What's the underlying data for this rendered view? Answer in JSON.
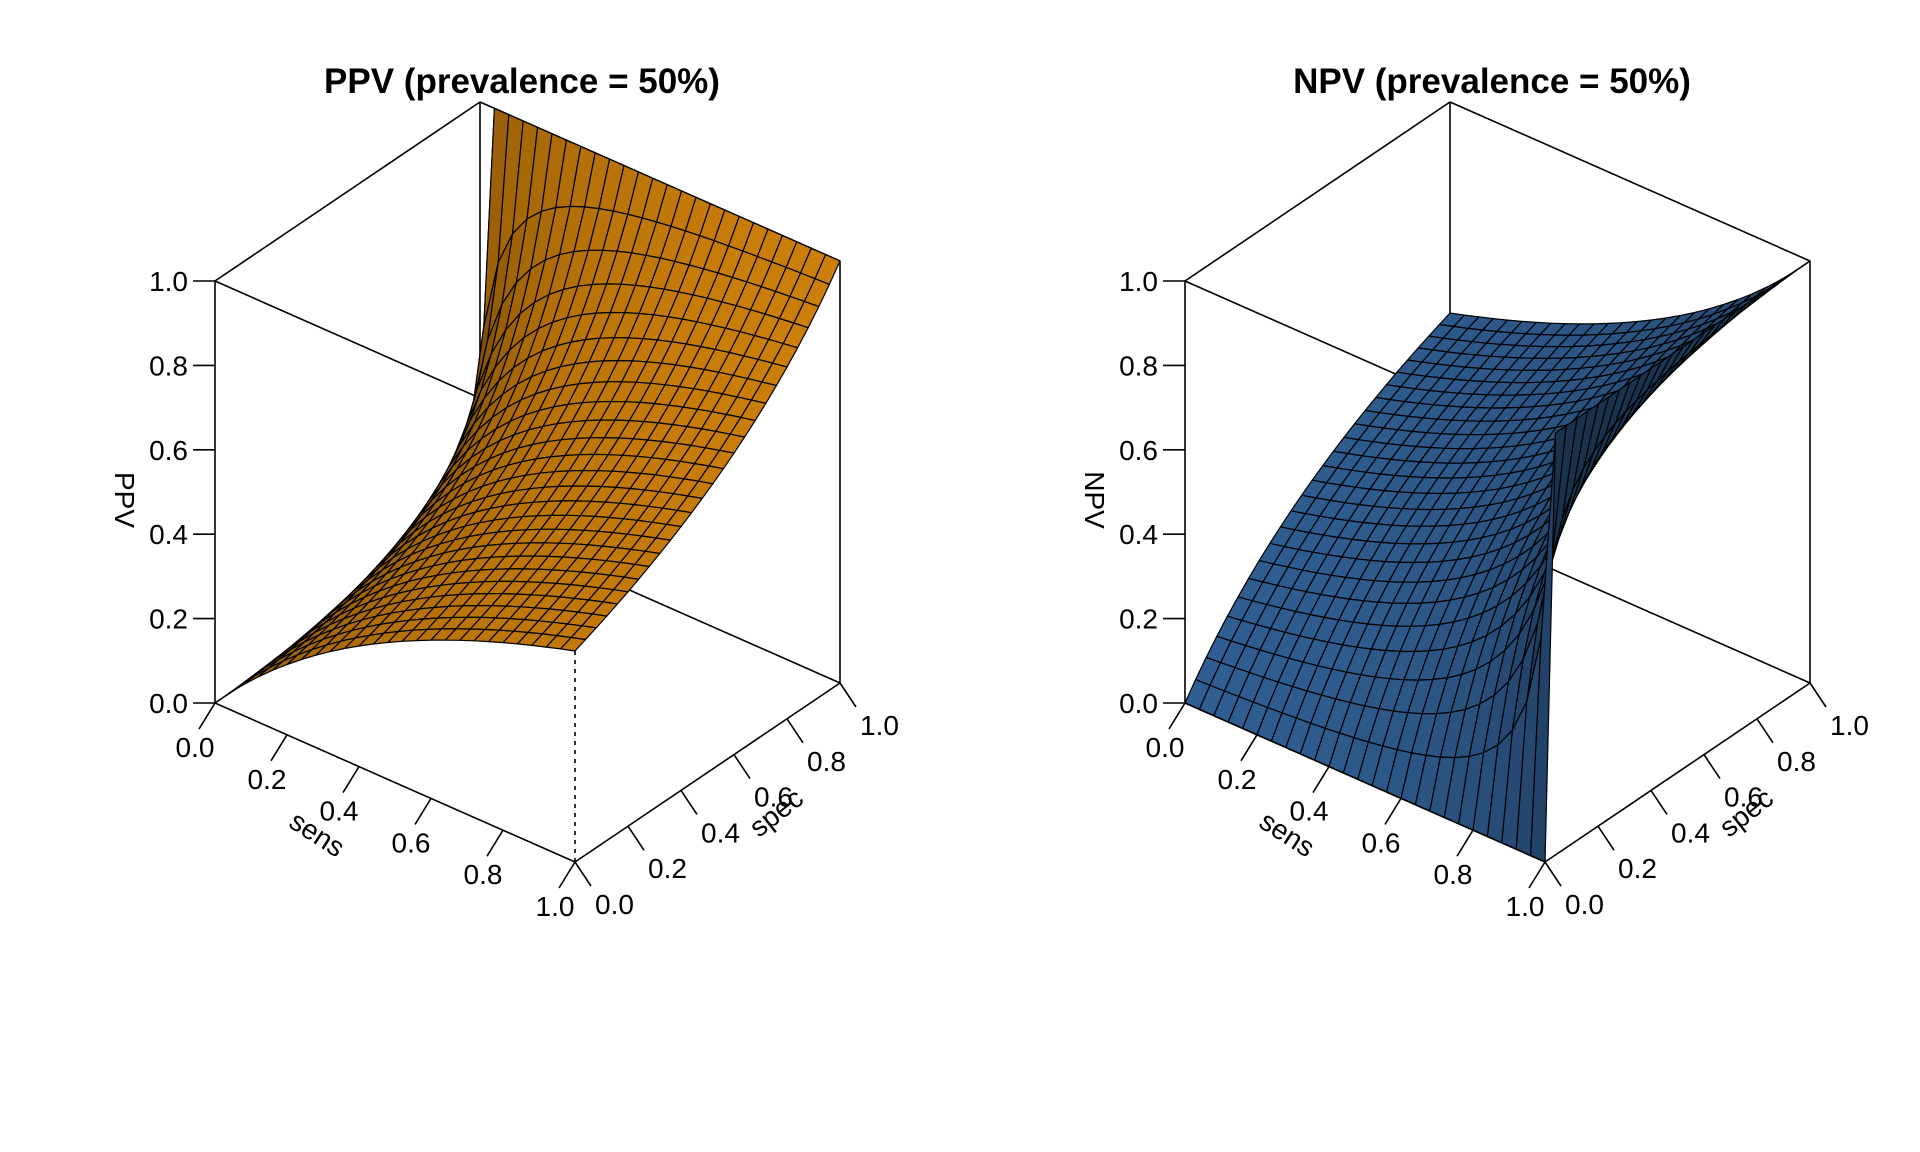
{
  "chart_data": [
    {
      "type": "surface3d",
      "title": "PPV (prevalence = 50%)",
      "xlabel": "sens",
      "ylabel": "spec",
      "zlabel": "PPV",
      "x_ticks": [
        "0.0",
        "0.2",
        "0.4",
        "0.6",
        "0.8",
        "1.0"
      ],
      "y_ticks": [
        "0.0",
        "0.2",
        "0.4",
        "0.6",
        "0.8",
        "1.0"
      ],
      "z_ticks": [
        "0.0",
        "0.2",
        "0.4",
        "0.6",
        "0.8",
        "1.0"
      ],
      "xlim": [
        0,
        1
      ],
      "ylim": [
        0,
        1
      ],
      "zlim": [
        0,
        1
      ],
      "prevalence": 0.5,
      "grid_n": 26,
      "function": "sens*p / (sens*p + (1-spec)*(1-p))",
      "surface_color": "#C47A0A"
    },
    {
      "type": "surface3d",
      "title": "NPV (prevalence = 50%)",
      "xlabel": "sens",
      "ylabel": "spec",
      "zlabel": "NPV",
      "x_ticks": [
        "0.0",
        "0.2",
        "0.4",
        "0.6",
        "0.8",
        "1.0"
      ],
      "y_ticks": [
        "0.0",
        "0.2",
        "0.4",
        "0.6",
        "0.8",
        "1.0"
      ],
      "z_ticks": [
        "0.0",
        "0.2",
        "0.4",
        "0.6",
        "0.8",
        "1.0"
      ],
      "xlim": [
        0,
        1
      ],
      "ylim": [
        0,
        1
      ],
      "zlim": [
        0,
        1
      ],
      "prevalence": 0.5,
      "grid_n": 26,
      "function": "spec*(1-p) / (spec*(1-p) + (1-sens)*p)",
      "surface_color": "#2E5A8C"
    }
  ]
}
